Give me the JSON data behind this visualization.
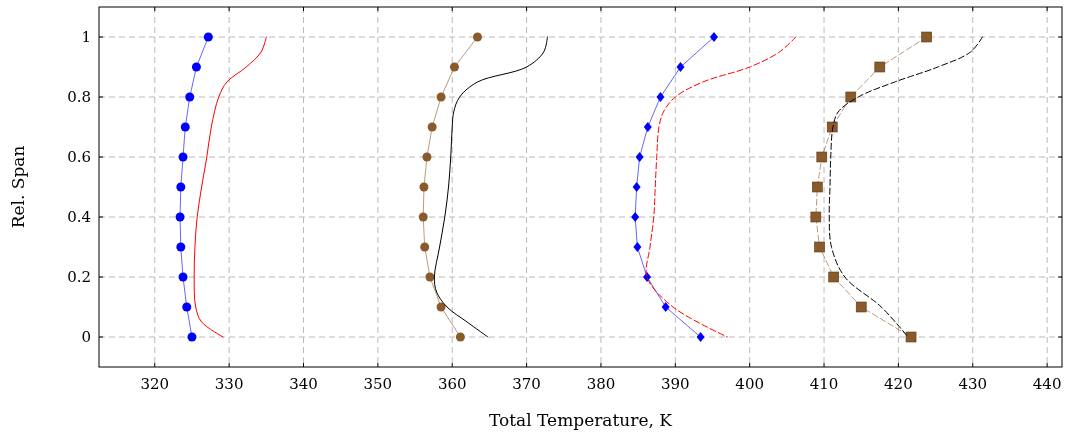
{
  "chart_data": {
    "type": "line",
    "xlabel": "Total Temperature, K",
    "ylabel": "Rel. Span",
    "xlim": [
      312.5,
      442
    ],
    "ylim": [
      -0.1,
      1.1
    ],
    "xticks": [
      320,
      330,
      340,
      350,
      360,
      370,
      380,
      390,
      400,
      410,
      420,
      430,
      440
    ],
    "yticks": [
      0,
      0.2,
      0.4,
      0.6,
      0.8,
      1
    ],
    "grid": true,
    "series": [
      {
        "color": "#0000ff",
        "marker": "circle",
        "line_style": "solid",
        "x": [
          327.2,
          325.6,
          324.7,
          324.1,
          323.8,
          323.5,
          323.4,
          323.5,
          323.8,
          324.3,
          325.0
        ],
        "values": [
          1,
          0.9,
          0.8,
          0.7,
          0.6,
          0.5,
          0.4,
          0.3,
          0.2,
          0.1,
          0
        ]
      },
      {
        "color": "#ff0000",
        "marker": "none",
        "line_style": "solid",
        "x": [
          335.0,
          334.3,
          332.3,
          329.7,
          328.6,
          327.6,
          327.0,
          326.3,
          325.7,
          325.4,
          325.3,
          325.5,
          326.3,
          329.2
        ],
        "values": [
          1,
          0.95,
          0.9,
          0.85,
          0.8,
          0.7,
          0.6,
          0.5,
          0.4,
          0.3,
          0.2,
          0.1,
          0.05,
          0
        ]
      },
      {
        "color": "#8b5a2b",
        "marker": "circle",
        "line_style": "solid",
        "x": [
          363.4,
          360.3,
          358.5,
          357.3,
          356.6,
          356.2,
          356.1,
          356.3,
          357.0,
          358.5,
          361.1
        ],
        "values": [
          1,
          0.9,
          0.8,
          0.7,
          0.6,
          0.5,
          0.4,
          0.3,
          0.2,
          0.1,
          0
        ]
      },
      {
        "color": "#000000",
        "marker": "none",
        "line_style": "solid",
        "x": [
          372.8,
          372.3,
          370.0,
          363.4,
          361.0,
          360.2,
          360.0,
          359.8,
          359.5,
          359.0,
          358.3,
          357.6,
          357.9,
          359.3,
          362.0,
          364.8
        ],
        "values": [
          1,
          0.95,
          0.9,
          0.85,
          0.8,
          0.75,
          0.7,
          0.6,
          0.5,
          0.4,
          0.3,
          0.2,
          0.15,
          0.1,
          0.05,
          0
        ]
      },
      {
        "color": "#0000ff",
        "marker": "diamond",
        "line_style": "solid",
        "x": [
          395.2,
          390.7,
          388.0,
          386.3,
          385.2,
          384.8,
          384.6,
          384.9,
          386.2,
          388.7,
          393.4
        ],
        "values": [
          1,
          0.9,
          0.8,
          0.7,
          0.6,
          0.5,
          0.4,
          0.3,
          0.2,
          0.1,
          0
        ]
      },
      {
        "color": "#ff0000",
        "marker": "none",
        "line_style": "dashed",
        "x": [
          406.2,
          404.0,
          400.0,
          393.7,
          390.0,
          388.4,
          387.8,
          387.5,
          387.3,
          387.1,
          386.6,
          386.2,
          389.7,
          397.0
        ],
        "values": [
          1,
          0.95,
          0.9,
          0.85,
          0.8,
          0.75,
          0.7,
          0.6,
          0.5,
          0.4,
          0.3,
          0.2,
          0.1,
          0
        ]
      },
      {
        "color": "#8b5a2b",
        "marker": "square",
        "line_style": "dashed",
        "x": [
          423.8,
          417.5,
          413.6,
          411.1,
          409.7,
          409.1,
          408.9,
          409.4,
          411.3,
          415.0,
          421.7
        ],
        "values": [
          1,
          0.9,
          0.8,
          0.7,
          0.6,
          0.5,
          0.4,
          0.3,
          0.2,
          0.1,
          0
        ]
      },
      {
        "color": "#000000",
        "marker": "none",
        "line_style": "dashed",
        "x": [
          431.3,
          429.7,
          425.3,
          419.5,
          414.6,
          411.9,
          411.2,
          410.9,
          410.8,
          410.7,
          411.0,
          412.8,
          417.7,
          421.3
        ],
        "values": [
          1,
          0.95,
          0.9,
          0.85,
          0.8,
          0.75,
          0.7,
          0.6,
          0.5,
          0.4,
          0.3,
          0.2,
          0.1,
          0
        ]
      }
    ]
  }
}
